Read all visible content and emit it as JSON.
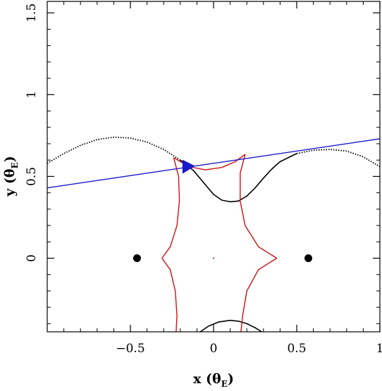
{
  "chart_data": {
    "type": "line",
    "xlabel": "x (θE)",
    "ylabel": "y (θE)",
    "xlabel_main": "x (θ",
    "xlabel_sub": "E",
    "xlabel_close": ")",
    "ylabel_main": "y (θ",
    "ylabel_sub": "E",
    "ylabel_close": ")",
    "xlim": [
      -1.0,
      1.0
    ],
    "ylim": [
      -0.45,
      1.57
    ],
    "xticks": [
      {
        "value": -0.5,
        "label": "−0.5"
      },
      {
        "value": 0,
        "label": "0"
      },
      {
        "value": 0.5,
        "label": "0.5"
      },
      {
        "value": 1,
        "label": "1"
      }
    ],
    "yticks": [
      {
        "value": 0,
        "label": "0"
      },
      {
        "value": 0.5,
        "label": "0.5"
      },
      {
        "value": 1,
        "label": "1"
      },
      {
        "value": 1.5,
        "label": "1.5"
      }
    ],
    "lenses": [
      {
        "x": -0.46,
        "y": 0.0
      },
      {
        "x": 0.57,
        "y": 0.0
      }
    ],
    "center_mark": {
      "x": 0.0,
      "y": 0.0
    },
    "trajectory": {
      "color": "#1a1acc",
      "points": [
        [
          -1.0,
          0.43
        ],
        [
          1.0,
          0.73
        ]
      ]
    },
    "source": {
      "x": -0.17,
      "y": 0.555,
      "color": "#1a1acc"
    },
    "magnification_curve_upper": {
      "color": "#000000",
      "points": [
        [
          -1.0,
          0.58
        ],
        [
          -0.9,
          0.64
        ],
        [
          -0.8,
          0.69
        ],
        [
          -0.7,
          0.725
        ],
        [
          -0.6,
          0.74
        ],
        [
          -0.5,
          0.735
        ],
        [
          -0.4,
          0.71
        ],
        [
          -0.3,
          0.665
        ],
        [
          -0.2,
          0.6
        ],
        [
          -0.12,
          0.535
        ],
        [
          -0.05,
          0.45
        ],
        [
          0.0,
          0.39
        ],
        [
          0.05,
          0.355
        ],
        [
          0.1,
          0.345
        ],
        [
          0.15,
          0.35
        ],
        [
          0.2,
          0.38
        ],
        [
          0.25,
          0.43
        ],
        [
          0.3,
          0.49
        ],
        [
          0.35,
          0.545
        ],
        [
          0.4,
          0.59
        ],
        [
          0.5,
          0.64
        ],
        [
          0.6,
          0.66
        ],
        [
          0.7,
          0.665
        ],
        [
          0.8,
          0.655
        ],
        [
          0.9,
          0.62
        ],
        [
          1.0,
          0.56
        ]
      ]
    },
    "magnification_curve_lower": {
      "color": "#000000",
      "points": [
        [
          -0.08,
          -0.45
        ],
        [
          -0.03,
          -0.415
        ],
        [
          0.03,
          -0.39
        ],
        [
          0.1,
          -0.38
        ],
        [
          0.15,
          -0.385
        ],
        [
          0.2,
          -0.4
        ],
        [
          0.25,
          -0.425
        ],
        [
          0.29,
          -0.45
        ]
      ]
    },
    "caustic": {
      "color": "#cc1111",
      "upper_cusp": [
        [
          -0.24,
          0.615
        ],
        [
          -0.15,
          0.56
        ],
        [
          -0.05,
          0.54
        ],
        [
          0.05,
          0.555
        ],
        [
          0.13,
          0.59
        ],
        [
          0.19,
          0.635
        ]
      ],
      "upper_left_fold": [
        [
          -0.24,
          0.615
        ],
        [
          -0.21,
          0.5
        ],
        [
          -0.205,
          0.35
        ],
        [
          -0.22,
          0.2
        ],
        [
          -0.26,
          0.07
        ],
        [
          -0.31,
          0.0
        ]
      ],
      "upper_right_fold": [
        [
          0.19,
          0.635
        ],
        [
          0.16,
          0.52
        ],
        [
          0.16,
          0.35
        ],
        [
          0.19,
          0.2
        ],
        [
          0.27,
          0.07
        ],
        [
          0.38,
          0.0
        ]
      ],
      "lower_left_fold": [
        [
          -0.31,
          0.0
        ],
        [
          -0.26,
          -0.07
        ],
        [
          -0.23,
          -0.2
        ],
        [
          -0.22,
          -0.35
        ],
        [
          -0.225,
          -0.45
        ]
      ],
      "lower_right_fold": [
        [
          0.38,
          0.0
        ],
        [
          0.27,
          -0.07
        ],
        [
          0.2,
          -0.2
        ],
        [
          0.175,
          -0.35
        ],
        [
          0.165,
          -0.45
        ]
      ]
    }
  }
}
